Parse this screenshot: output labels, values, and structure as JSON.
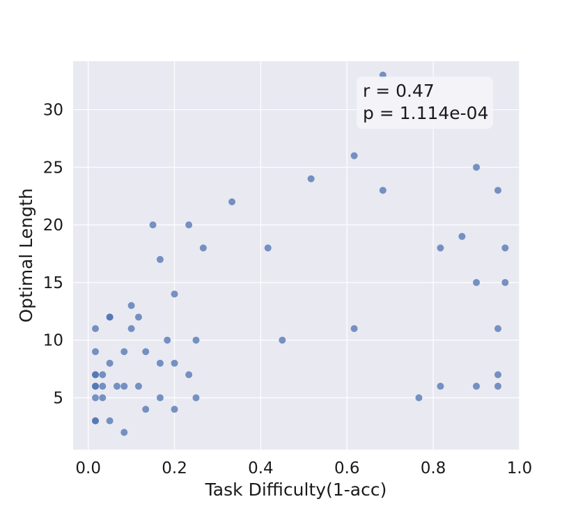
{
  "chart_data": {
    "type": "scatter",
    "title": "",
    "xlabel": "Task Difficulty(1-acc)",
    "ylabel": "Optimal Length",
    "xlim": [
      -0.035,
      1.0
    ],
    "ylim": [
      0.5,
      34.2
    ],
    "xticks": [
      0.0,
      0.2,
      0.4,
      0.6,
      0.8,
      1.0
    ],
    "xtick_labels": [
      "0.0",
      "0.2",
      "0.4",
      "0.6",
      "0.8",
      "1.0"
    ],
    "yticks": [
      5,
      10,
      15,
      20,
      25,
      30
    ],
    "ytick_labels": [
      "5",
      "10",
      "15",
      "20",
      "25",
      "30"
    ],
    "grid": true,
    "style": {
      "background": "#e9e9f2",
      "grid_color": "#ffffff",
      "point_color": "#4c72b0"
    },
    "annotation": {
      "lines": [
        "r = 0.47",
        "p = 1.114e-04"
      ],
      "location": "top-right"
    },
    "points": [
      {
        "x": 0.0167,
        "y": 11
      },
      {
        "x": 0.0167,
        "y": 9
      },
      {
        "x": 0.0167,
        "y": 7
      },
      {
        "x": 0.0167,
        "y": 7
      },
      {
        "x": 0.0167,
        "y": 6
      },
      {
        "x": 0.0167,
        "y": 6
      },
      {
        "x": 0.0167,
        "y": 5
      },
      {
        "x": 0.0167,
        "y": 3
      },
      {
        "x": 0.0167,
        "y": 3
      },
      {
        "x": 0.0333,
        "y": 7
      },
      {
        "x": 0.0333,
        "y": 6
      },
      {
        "x": 0.0333,
        "y": 5
      },
      {
        "x": 0.05,
        "y": 12
      },
      {
        "x": 0.05,
        "y": 12
      },
      {
        "x": 0.05,
        "y": 8
      },
      {
        "x": 0.05,
        "y": 3
      },
      {
        "x": 0.0667,
        "y": 6
      },
      {
        "x": 0.0833,
        "y": 9
      },
      {
        "x": 0.0833,
        "y": 6
      },
      {
        "x": 0.0833,
        "y": 2
      },
      {
        "x": 0.1,
        "y": 13
      },
      {
        "x": 0.1,
        "y": 11
      },
      {
        "x": 0.1167,
        "y": 12
      },
      {
        "x": 0.1167,
        "y": 6
      },
      {
        "x": 0.1333,
        "y": 9
      },
      {
        "x": 0.1333,
        "y": 4
      },
      {
        "x": 0.15,
        "y": 20
      },
      {
        "x": 0.1667,
        "y": 17
      },
      {
        "x": 0.1667,
        "y": 8
      },
      {
        "x": 0.1667,
        "y": 5
      },
      {
        "x": 0.1833,
        "y": 10
      },
      {
        "x": 0.2,
        "y": 14
      },
      {
        "x": 0.2,
        "y": 8
      },
      {
        "x": 0.2,
        "y": 4
      },
      {
        "x": 0.2333,
        "y": 20
      },
      {
        "x": 0.2333,
        "y": 7
      },
      {
        "x": 0.25,
        "y": 10
      },
      {
        "x": 0.25,
        "y": 5
      },
      {
        "x": 0.2667,
        "y": 18
      },
      {
        "x": 0.3333,
        "y": 22
      },
      {
        "x": 0.4167,
        "y": 18
      },
      {
        "x": 0.45,
        "y": 10
      },
      {
        "x": 0.5167,
        "y": 24
      },
      {
        "x": 0.6167,
        "y": 26
      },
      {
        "x": 0.6167,
        "y": 11
      },
      {
        "x": 0.6833,
        "y": 33
      },
      {
        "x": 0.6833,
        "y": 23
      },
      {
        "x": 0.7667,
        "y": 5
      },
      {
        "x": 0.8167,
        "y": 18
      },
      {
        "x": 0.8167,
        "y": 6
      },
      {
        "x": 0.8667,
        "y": 19
      },
      {
        "x": 0.9,
        "y": 25
      },
      {
        "x": 0.9,
        "y": 15
      },
      {
        "x": 0.9,
        "y": 6
      },
      {
        "x": 0.95,
        "y": 23
      },
      {
        "x": 0.95,
        "y": 11
      },
      {
        "x": 0.95,
        "y": 7
      },
      {
        "x": 0.95,
        "y": 6
      },
      {
        "x": 0.9667,
        "y": 18
      },
      {
        "x": 0.9667,
        "y": 15
      }
    ]
  }
}
